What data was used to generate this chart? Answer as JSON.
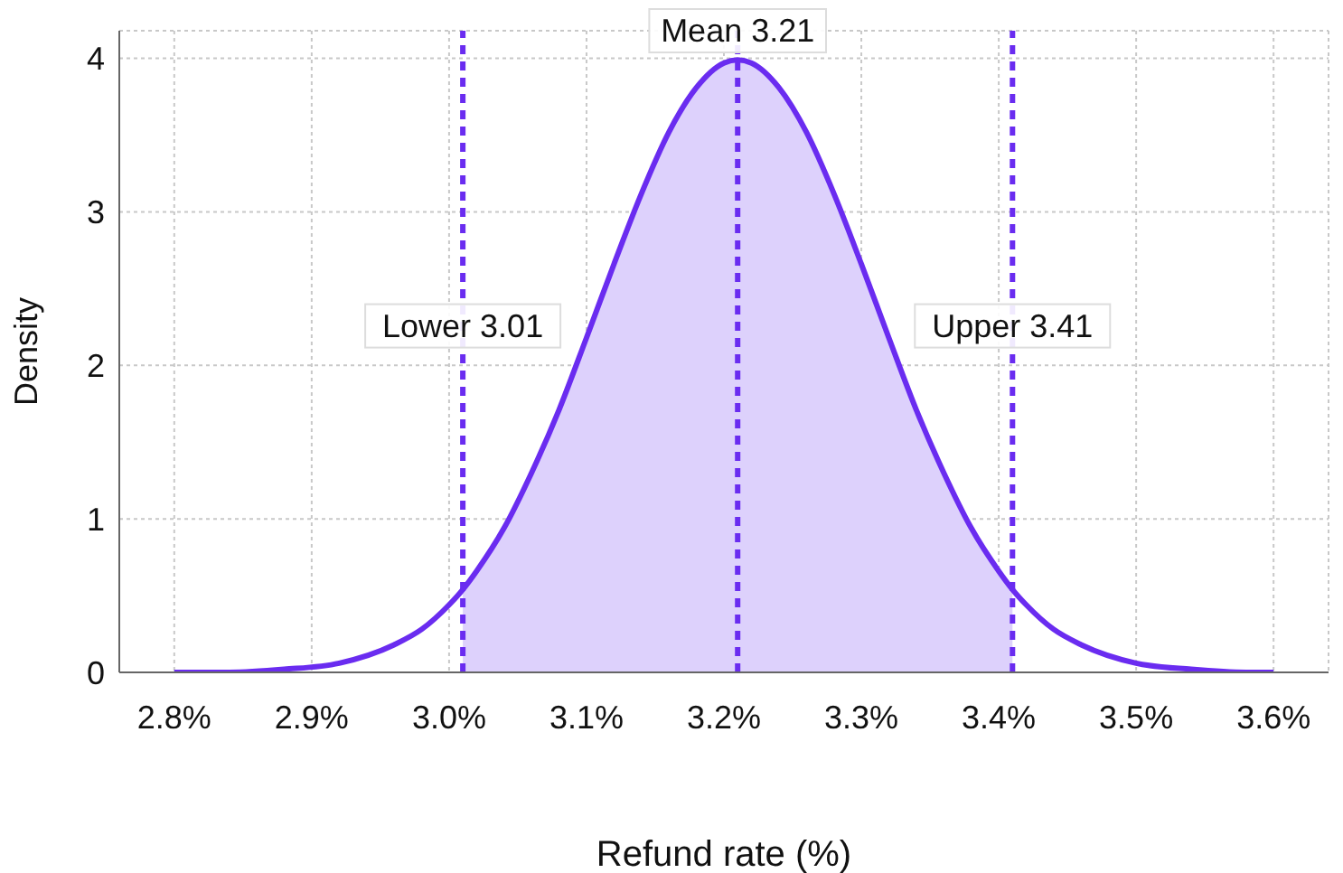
{
  "chart_data": {
    "type": "line",
    "xlabel": "Refund rate (%)",
    "ylabel": "Density",
    "xlim": [
      2.76,
      3.64
    ],
    "ylim": [
      0,
      4.18
    ],
    "xticks": [
      {
        "value": 2.8,
        "label": "2.8%"
      },
      {
        "value": 2.9,
        "label": "2.9%"
      },
      {
        "value": 3.0,
        "label": "3.0%"
      },
      {
        "value": 3.1,
        "label": "3.1%"
      },
      {
        "value": 3.2,
        "label": "3.2%"
      },
      {
        "value": 3.3,
        "label": "3.3%"
      },
      {
        "value": 3.4,
        "label": "3.4%"
      },
      {
        "value": 3.5,
        "label": "3.5%"
      },
      {
        "value": 3.6,
        "label": "3.6%"
      }
    ],
    "yticks": [
      0,
      1,
      2,
      3,
      4
    ],
    "grid": true,
    "marker": "none",
    "line_style": "solid",
    "series": [
      {
        "type": "area",
        "color": "#ddd1fc",
        "x": [
          3.01,
          3.02,
          3.04,
          3.06,
          3.08,
          3.1,
          3.12,
          3.14,
          3.16,
          3.18,
          3.2,
          3.21,
          3.22,
          3.24,
          3.26,
          3.28,
          3.3,
          3.32,
          3.34,
          3.36,
          3.38,
          3.4,
          3.41
        ],
        "values": [
          0.54,
          0.66,
          0.94,
          1.3,
          1.71,
          2.18,
          2.66,
          3.12,
          3.52,
          3.81,
          3.97,
          3.99,
          3.97,
          3.81,
          3.52,
          3.12,
          2.66,
          2.18,
          1.71,
          1.3,
          0.94,
          0.66,
          0.54
        ]
      },
      {
        "color": "#6a2cf0",
        "x": [
          2.8,
          2.84,
          2.88,
          2.92,
          2.96,
          2.98,
          3.0,
          3.01,
          3.02,
          3.04,
          3.06,
          3.08,
          3.1,
          3.12,
          3.14,
          3.16,
          3.18,
          3.2,
          3.21,
          3.22,
          3.24,
          3.26,
          3.28,
          3.3,
          3.32,
          3.34,
          3.36,
          3.38,
          3.4,
          3.41,
          3.42,
          3.44,
          3.46,
          3.5,
          3.54,
          3.58,
          3.6
        ],
        "values": [
          0.0,
          0.0,
          0.02,
          0.06,
          0.18,
          0.28,
          0.44,
          0.54,
          0.66,
          0.94,
          1.3,
          1.71,
          2.18,
          2.66,
          3.12,
          3.52,
          3.81,
          3.97,
          3.99,
          3.97,
          3.81,
          3.52,
          3.12,
          2.66,
          2.18,
          1.71,
          1.3,
          0.94,
          0.66,
          0.54,
          0.44,
          0.28,
          0.18,
          0.06,
          0.02,
          0.0,
          0.0
        ]
      }
    ],
    "ref_lines": [
      {
        "axis": "x",
        "value": 3.01,
        "label": "Lower 3.01",
        "color": "#6a2cf0",
        "line_style": "dashed"
      },
      {
        "axis": "x",
        "value": 3.21,
        "label": "Mean 3.21",
        "color": "#6a2cf0",
        "line_style": "dashed"
      },
      {
        "axis": "x",
        "value": 3.41,
        "label": "Upper 3.41",
        "color": "#6a2cf0",
        "line_style": "dashed"
      }
    ]
  }
}
